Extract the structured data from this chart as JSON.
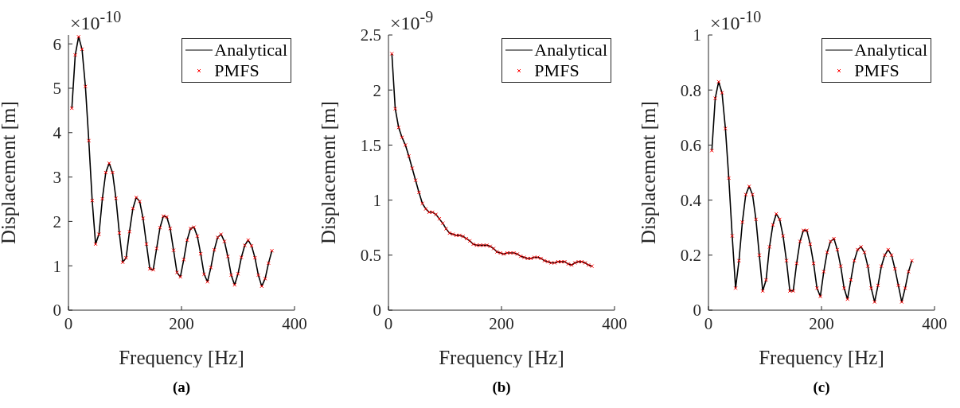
{
  "chart_data": [
    {
      "type": "line",
      "title": "(a)",
      "xlabel": "Frequency [Hz]",
      "ylabel": "Displacement [m]",
      "annotations": [
        "×10$^{-10}$"
      ],
      "legend": "top right",
      "xlim": [
        0,
        400
      ],
      "xticks": [
        0,
        200,
        400
      ],
      "ylim": [
        0,
        6.2
      ],
      "yticks": [
        0,
        1,
        2,
        3,
        4,
        5,
        6
      ],
      "x": [
        6,
        12,
        18,
        24,
        30,
        36,
        42,
        48,
        54,
        60,
        66,
        72,
        78,
        84,
        90,
        96,
        102,
        108,
        114,
        120,
        126,
        132,
        138,
        144,
        150,
        156,
        162,
        168,
        174,
        180,
        186,
        192,
        198,
        204,
        210,
        216,
        222,
        228,
        234,
        240,
        246,
        252,
        258,
        264,
        270,
        276,
        282,
        288,
        294,
        300,
        306,
        312,
        318,
        324,
        330,
        336,
        342,
        348,
        354,
        360
      ],
      "series": [
        {
          "name": "Analytical",
          "type": "line",
          "color": "#000000",
          "marker": "none",
          "values": [
            4.55,
            5.75,
            6.16,
            5.88,
            5.04,
            3.82,
            2.47,
            1.49,
            1.71,
            2.51,
            3.1,
            3.31,
            3.1,
            2.52,
            1.74,
            1.08,
            1.18,
            1.77,
            2.29,
            2.54,
            2.45,
            2.07,
            1.49,
            0.93,
            0.91,
            1.39,
            1.86,
            2.12,
            2.1,
            1.84,
            1.35,
            0.85,
            0.75,
            1.14,
            1.58,
            1.84,
            1.87,
            1.67,
            1.27,
            0.81,
            0.64,
            0.96,
            1.36,
            1.64,
            1.71,
            1.55,
            1.21,
            0.79,
            0.57,
            0.82,
            1.19,
            1.46,
            1.58,
            1.45,
            1.18,
            0.79,
            0.54,
            0.71,
            1.06,
            1.34
          ]
        },
        {
          "name": "PMFS",
          "type": "scatter",
          "color": "#ff0000",
          "marker": "cross",
          "values": [
            4.55,
            5.75,
            6.16,
            5.88,
            5.04,
            3.82,
            2.47,
            1.49,
            1.71,
            2.51,
            3.1,
            3.31,
            3.1,
            2.52,
            1.74,
            1.08,
            1.18,
            1.77,
            2.29,
            2.54,
            2.45,
            2.07,
            1.49,
            0.93,
            0.91,
            1.39,
            1.86,
            2.12,
            2.1,
            1.84,
            1.35,
            0.85,
            0.75,
            1.14,
            1.58,
            1.84,
            1.87,
            1.67,
            1.27,
            0.81,
            0.64,
            0.96,
            1.36,
            1.64,
            1.71,
            1.55,
            1.21,
            0.79,
            0.57,
            0.82,
            1.19,
            1.46,
            1.58,
            1.45,
            1.18,
            0.79,
            0.54,
            0.71,
            1.06,
            1.34
          ]
        }
      ]
    },
    {
      "type": "line",
      "title": "(b)",
      "xlabel": "Frequency [Hz]",
      "ylabel": "Displacement [m]",
      "annotations": [
        "×10$^{-9}$"
      ],
      "legend": "top right",
      "xlim": [
        0,
        400
      ],
      "xticks": [
        0,
        200,
        400
      ],
      "ylim": [
        0,
        2.5
      ],
      "yticks": [
        0,
        0.5,
        1,
        1.5,
        2,
        2.5
      ],
      "x": [
        6,
        12,
        18,
        24,
        30,
        36,
        42,
        48,
        54,
        60,
        66,
        72,
        78,
        84,
        90,
        96,
        102,
        108,
        114,
        120,
        126,
        132,
        138,
        144,
        150,
        156,
        162,
        168,
        174,
        180,
        186,
        192,
        198,
        204,
        210,
        216,
        222,
        228,
        234,
        240,
        246,
        252,
        258,
        264,
        270,
        276,
        282,
        288,
        294,
        300,
        306,
        312,
        318,
        324,
        330,
        336,
        342,
        348,
        354,
        360
      ],
      "series": [
        {
          "name": "Analytical",
          "type": "line",
          "color": "#000000",
          "marker": "none",
          "values": [
            2.33,
            1.83,
            1.66,
            1.57,
            1.5,
            1.4,
            1.29,
            1.18,
            1.07,
            0.97,
            0.92,
            0.89,
            0.89,
            0.87,
            0.83,
            0.79,
            0.74,
            0.7,
            0.69,
            0.68,
            0.68,
            0.67,
            0.65,
            0.63,
            0.6,
            0.59,
            0.59,
            0.59,
            0.59,
            0.58,
            0.56,
            0.53,
            0.52,
            0.51,
            0.52,
            0.52,
            0.52,
            0.51,
            0.49,
            0.48,
            0.47,
            0.47,
            0.48,
            0.48,
            0.47,
            0.45,
            0.44,
            0.43,
            0.43,
            0.44,
            0.44,
            0.44,
            0.42,
            0.41,
            0.43,
            0.44,
            0.44,
            0.43,
            0.41,
            0.4
          ]
        },
        {
          "name": "PMFS",
          "type": "scatter",
          "color": "#ff0000",
          "marker": "cross",
          "values": [
            2.33,
            1.83,
            1.66,
            1.57,
            1.5,
            1.4,
            1.29,
            1.18,
            1.07,
            0.97,
            0.92,
            0.89,
            0.89,
            0.87,
            0.83,
            0.79,
            0.74,
            0.7,
            0.69,
            0.68,
            0.68,
            0.67,
            0.65,
            0.63,
            0.6,
            0.59,
            0.59,
            0.59,
            0.59,
            0.58,
            0.56,
            0.53,
            0.52,
            0.51,
            0.52,
            0.52,
            0.52,
            0.51,
            0.49,
            0.48,
            0.47,
            0.47,
            0.48,
            0.48,
            0.47,
            0.45,
            0.44,
            0.43,
            0.43,
            0.44,
            0.44,
            0.44,
            0.42,
            0.41,
            0.43,
            0.44,
            0.44,
            0.43,
            0.41,
            0.4
          ]
        }
      ]
    },
    {
      "type": "line",
      "title": "(c)",
      "xlabel": "Frequency [Hz]",
      "ylabel": "Displacement [m]",
      "annotations": [
        "×10$^{-10}$"
      ],
      "legend": "top right",
      "xlim": [
        0,
        400
      ],
      "xticks": [
        0,
        200,
        400
      ],
      "ylim": [
        0,
        1
      ],
      "yticks": [
        0,
        0.2,
        0.4,
        0.6,
        0.8,
        1
      ],
      "x": [
        6,
        12,
        18,
        24,
        30,
        36,
        42,
        48,
        54,
        60,
        66,
        72,
        78,
        84,
        90,
        96,
        102,
        108,
        114,
        120,
        126,
        132,
        138,
        144,
        150,
        156,
        162,
        168,
        174,
        180,
        186,
        192,
        198,
        204,
        210,
        216,
        222,
        228,
        234,
        240,
        246,
        252,
        258,
        264,
        270,
        276,
        282,
        288,
        294,
        300,
        306,
        312,
        318,
        324,
        330,
        336,
        342,
        348,
        354,
        360
      ],
      "series": [
        {
          "name": "Analytical",
          "type": "line",
          "color": "#000000",
          "marker": "none",
          "values": [
            0.58,
            0.77,
            0.83,
            0.79,
            0.66,
            0.48,
            0.27,
            0.08,
            0.18,
            0.32,
            0.42,
            0.45,
            0.42,
            0.33,
            0.2,
            0.07,
            0.11,
            0.23,
            0.31,
            0.35,
            0.33,
            0.27,
            0.18,
            0.07,
            0.07,
            0.17,
            0.25,
            0.29,
            0.29,
            0.24,
            0.17,
            0.08,
            0.05,
            0.14,
            0.21,
            0.25,
            0.26,
            0.22,
            0.16,
            0.08,
            0.04,
            0.11,
            0.18,
            0.22,
            0.23,
            0.21,
            0.16,
            0.08,
            0.03,
            0.09,
            0.16,
            0.2,
            0.22,
            0.2,
            0.15,
            0.09,
            0.03,
            0.08,
            0.14,
            0.18
          ]
        },
        {
          "name": "PMFS",
          "type": "scatter",
          "color": "#ff0000",
          "marker": "cross",
          "values": [
            0.58,
            0.77,
            0.83,
            0.79,
            0.66,
            0.48,
            0.27,
            0.08,
            0.18,
            0.32,
            0.42,
            0.45,
            0.42,
            0.33,
            0.2,
            0.07,
            0.11,
            0.23,
            0.31,
            0.35,
            0.33,
            0.27,
            0.18,
            0.07,
            0.07,
            0.17,
            0.25,
            0.29,
            0.29,
            0.24,
            0.17,
            0.08,
            0.05,
            0.14,
            0.21,
            0.25,
            0.26,
            0.22,
            0.16,
            0.08,
            0.04,
            0.11,
            0.18,
            0.22,
            0.23,
            0.21,
            0.16,
            0.08,
            0.03,
            0.09,
            0.16,
            0.2,
            0.22,
            0.2,
            0.15,
            0.09,
            0.03,
            0.08,
            0.14,
            0.18
          ]
        }
      ]
    }
  ]
}
